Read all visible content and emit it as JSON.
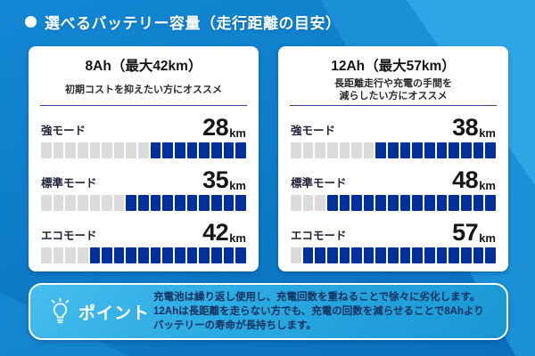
{
  "header": {
    "title": "選べるバッテリー容量（走行距離の目安）"
  },
  "cards": [
    {
      "title": "8Ah（最大42km）",
      "subtitle_lines": [
        "初期コストを抑えたい方にオススメ"
      ],
      "rows": [
        {
          "label": "強モード",
          "value": "28",
          "unit": "km",
          "segments_total": 17,
          "segments_filled": 8
        },
        {
          "label": "標準モード",
          "value": "35",
          "unit": "km",
          "segments_total": 17,
          "segments_filled": 10
        },
        {
          "label": "エコモード",
          "value": "42",
          "unit": "km",
          "segments_total": 17,
          "segments_filled": 13
        }
      ]
    },
    {
      "title": "12Ah（最大57km）",
      "subtitle_lines": [
        "長距離走行や充電の手間を",
        "減らしたい方にオススメ"
      ],
      "rows": [
        {
          "label": "強モード",
          "value": "38",
          "unit": "km",
          "segments_total": 17,
          "segments_filled": 10
        },
        {
          "label": "標準モード",
          "value": "48",
          "unit": "km",
          "segments_total": 17,
          "segments_filled": 14
        },
        {
          "label": "エコモード",
          "value": "57",
          "unit": "km",
          "segments_total": 17,
          "segments_filled": 16
        }
      ]
    }
  ],
  "point": {
    "label": "ポイント",
    "lines": [
      "充電池は繰り返し使用し、充電回数を重ねることで徐々に劣化します。",
      "12Ahは長距離を走らない方でも、充電の回数を減らせることで8Ahより",
      "バッテリーの寿命が長持ちします。"
    ]
  },
  "colors": {
    "background": "#0d7ac6",
    "background_accent": "#2ea5e4",
    "card_background": "#ffffff",
    "bar_filled": "#00309c",
    "bar_empty": "#dcdcdc",
    "divider": "#383fa0",
    "point_box": "#2aa9e2",
    "point_text": "#152f5c",
    "text_dark": "#161616",
    "header_text": "#ffffff"
  },
  "chart_data": [
    {
      "type": "bar",
      "title": "8Ah（最大42km）",
      "subtitle": "初期コストを抑えたい方にオススメ",
      "categories": [
        "強モード",
        "標準モード",
        "エコモード"
      ],
      "values": [
        28,
        35,
        42
      ],
      "unit": "km",
      "xlim": [
        0,
        60
      ],
      "segments_total": 17,
      "segments_filled": [
        8,
        10,
        13
      ],
      "orientation": "horizontal",
      "fill_direction": "right-aligned"
    },
    {
      "type": "bar",
      "title": "12Ah（最大57km）",
      "subtitle": "長距離走行や充電の手間を減らしたい方にオススメ",
      "categories": [
        "強モード",
        "標準モード",
        "エコモード"
      ],
      "values": [
        38,
        48,
        57
      ],
      "unit": "km",
      "xlim": [
        0,
        60
      ],
      "segments_total": 17,
      "segments_filled": [
        10,
        14,
        16
      ],
      "orientation": "horizontal",
      "fill_direction": "right-aligned"
    }
  ]
}
